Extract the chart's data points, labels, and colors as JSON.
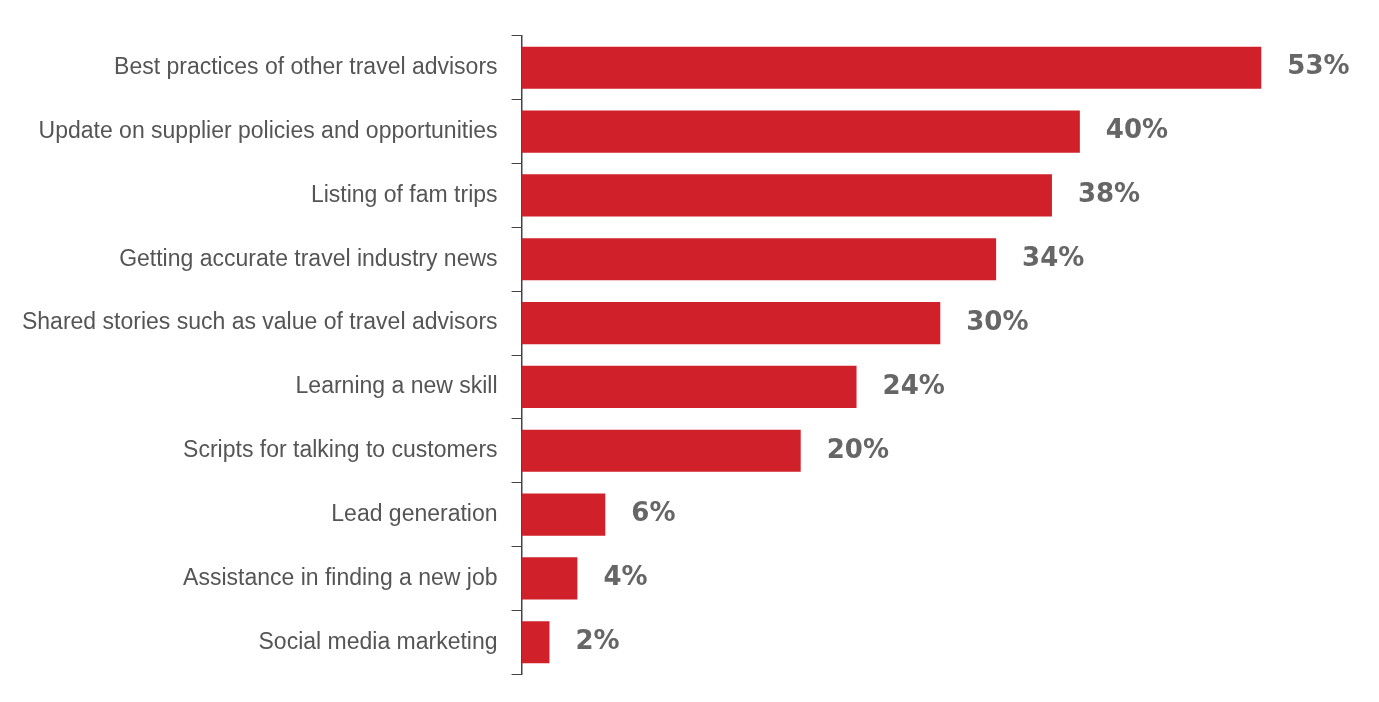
{
  "chart_data": {
    "type": "bar",
    "orientation": "horizontal",
    "categories": [
      "Best practices of other travel advisors",
      "Update on supplier policies and opportunities",
      "Listing of fam trips",
      "Getting accurate travel industry news",
      "Shared stories such as value of travel advisors",
      "Learning a new skill",
      "Scripts for talking to customers",
      "Lead generation",
      "Assistance in finding a new job",
      "Social media marketing"
    ],
    "values": [
      53,
      40,
      38,
      34,
      30,
      24,
      20,
      6,
      4,
      2
    ],
    "value_labels": [
      "53%",
      "40%",
      "38%",
      "34%",
      "30%",
      "24%",
      "20%",
      "6%",
      "4%",
      "2%"
    ],
    "color": "#d0202a",
    "legend": false
  }
}
